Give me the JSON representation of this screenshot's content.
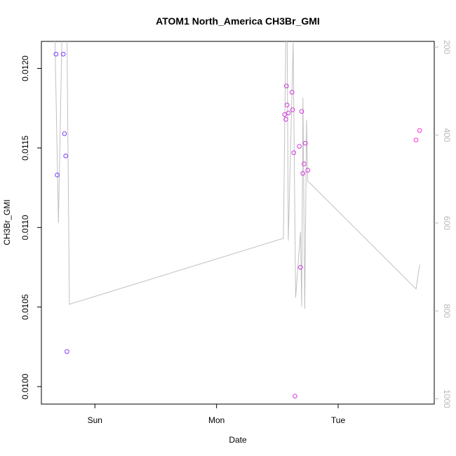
{
  "chart_data": {
    "type": "scatter",
    "title": "ATOM1 North_America CH3Br_GMI",
    "xlabel": "Date",
    "ylabel": "CH3Br_GMI",
    "x_ticks": [
      "Sun",
      "Mon",
      "Tue"
    ],
    "x_tick_days": [
      1,
      2,
      3
    ],
    "xlim_days": [
      0.56,
      3.79
    ],
    "y_ticks": [
      0.01,
      0.0105,
      0.011,
      0.0115,
      0.012
    ],
    "ylim": [
      0.00989,
      0.01217
    ],
    "y2_ticks": [
      200,
      400,
      600,
      800,
      1000
    ],
    "y2lim": [
      1012,
      187
    ],
    "grid": false,
    "colors": {
      "points_low": "#7a3cff",
      "points_high": "#ff33cc",
      "line": "#c0c0c0",
      "right_axis": "#b8b8b8"
    },
    "points": [
      {
        "x": 0.68,
        "y": 0.01209
      },
      {
        "x": 0.69,
        "y": 0.01133
      },
      {
        "x": 0.74,
        "y": 0.01209
      },
      {
        "x": 0.75,
        "y": 0.01159
      },
      {
        "x": 0.76,
        "y": 0.01145
      },
      {
        "x": 0.77,
        "y": 0.01022
      },
      {
        "x": 2.56,
        "y": 0.01171
      },
      {
        "x": 2.57,
        "y": 0.01168
      },
      {
        "x": 2.575,
        "y": 0.01189
      },
      {
        "x": 2.58,
        "y": 0.01177
      },
      {
        "x": 2.59,
        "y": 0.01172
      },
      {
        "x": 2.62,
        "y": 0.01185
      },
      {
        "x": 2.625,
        "y": 0.01174
      },
      {
        "x": 2.635,
        "y": 0.01147
      },
      {
        "x": 2.645,
        "y": 0.00994
      },
      {
        "x": 2.68,
        "y": 0.01151
      },
      {
        "x": 2.69,
        "y": 0.01075
      },
      {
        "x": 2.7,
        "y": 0.01173
      },
      {
        "x": 2.71,
        "y": 0.01134
      },
      {
        "x": 2.72,
        "y": 0.0114
      },
      {
        "x": 2.73,
        "y": 0.01153
      },
      {
        "x": 2.75,
        "y": 0.01136
      },
      {
        "x": 3.64,
        "y": 0.01155
      },
      {
        "x": 3.67,
        "y": 0.01161
      }
    ],
    "line_series": {
      "axis": "right",
      "points": [
        {
          "x": 0.67,
          "y": 160
        },
        {
          "x": 0.7,
          "y": 600
        },
        {
          "x": 0.73,
          "y": 160
        },
        {
          "x": 0.74,
          "y": 160
        },
        {
          "x": 0.77,
          "y": 160
        },
        {
          "x": 0.79,
          "y": 785
        },
        {
          "x": 2.55,
          "y": 635
        },
        {
          "x": 2.57,
          "y": 160
        },
        {
          "x": 2.58,
          "y": 160
        },
        {
          "x": 2.59,
          "y": 640
        },
        {
          "x": 2.63,
          "y": 190
        },
        {
          "x": 2.65,
          "y": 770
        },
        {
          "x": 2.69,
          "y": 620
        },
        {
          "x": 2.7,
          "y": 790
        },
        {
          "x": 2.71,
          "y": 315
        },
        {
          "x": 2.725,
          "y": 795
        },
        {
          "x": 2.74,
          "y": 365
        },
        {
          "x": 2.75,
          "y": 505
        },
        {
          "x": 2.77,
          "y": 510
        },
        {
          "x": 3.64,
          "y": 750
        },
        {
          "x": 3.67,
          "y": 695
        }
      ]
    }
  }
}
